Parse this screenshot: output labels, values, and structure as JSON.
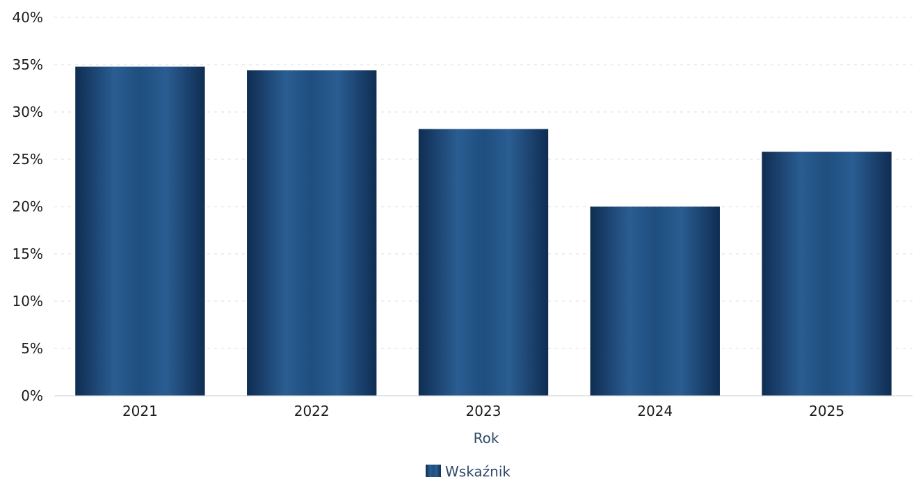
{
  "chart_data": {
    "type": "bar",
    "categories": [
      "2021",
      "2022",
      "2023",
      "2024",
      "2025"
    ],
    "series": [
      {
        "name": "Wskaźnik",
        "values": [
          34.8,
          34.4,
          28.2,
          20.0,
          25.8
        ]
      }
    ],
    "xlabel": "Rok",
    "ylabel": "",
    "ylim": [
      0,
      40
    ],
    "y_ticks": [
      "0%",
      "5%",
      "10%",
      "15%",
      "20%",
      "25%",
      "30%",
      "35%",
      "40%"
    ],
    "y_tick_values": [
      0,
      5,
      10,
      15,
      20,
      25,
      30,
      35,
      40
    ],
    "grid": true,
    "legend_position": "bottom-center",
    "bar_color": "#1f4e7f",
    "bar_color_dark": "#0f2d52"
  }
}
